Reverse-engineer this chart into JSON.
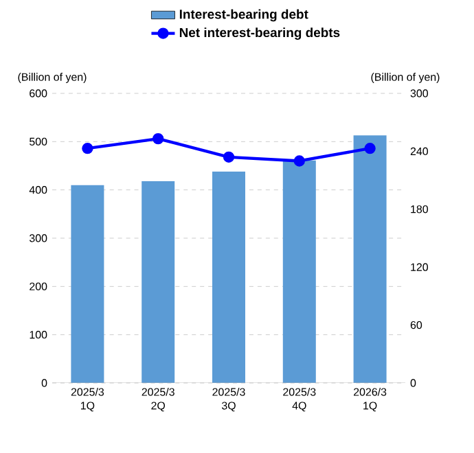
{
  "chart_data": {
    "type": "bar",
    "categories": [
      "2025/3 1Q",
      "2025/3 2Q",
      "2025/3 3Q",
      "2025/3 4Q",
      "2026/3 1Q"
    ],
    "series": [
      {
        "name": "Interest-bearing debt",
        "color": "#5b9bd5",
        "values": [
          410,
          418,
          438,
          461,
          513
        ]
      },
      {
        "name": "Net interest-bearing debts",
        "type": "line",
        "axis": "y2",
        "color": "#0000ff",
        "marker": "circle",
        "line_style": "solid",
        "values": [
          243,
          253,
          234,
          230,
          243
        ]
      }
    ],
    "ylabel": "(Billion of yen)",
    "y2label": "(Billion of yen)",
    "ylim": [
      0,
      600
    ],
    "yticks": [
      0,
      100,
      200,
      300,
      400,
      500,
      600
    ],
    "y2lim": [
      0,
      300
    ],
    "y2ticks": [
      0,
      60,
      120,
      180,
      240,
      300
    ],
    "grid": "y",
    "legend": "top"
  }
}
